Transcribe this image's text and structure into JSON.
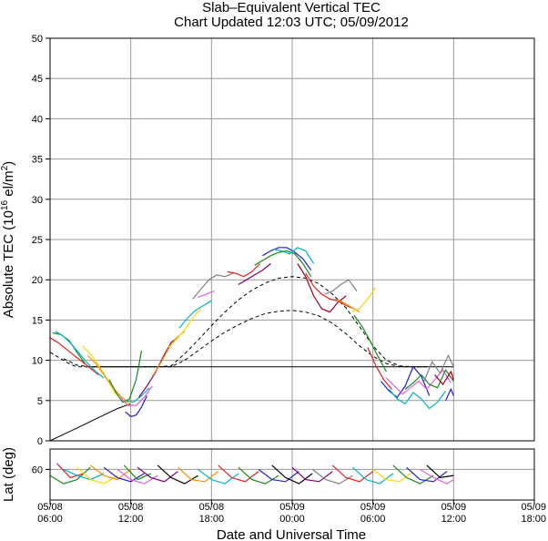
{
  "chart_data": {
    "type": "line",
    "title": "Slab–Equivalent Vertical TEC",
    "subtitle": "Chart Updated 12:03 UTC; 05/09/2012",
    "xlabel": "Date and Universal Time",
    "ylabel": "Absolute TEC (10¹⁶ el/m²)",
    "ylabel_parts": {
      "pre": "Absolute TEC (10",
      "sup1": "16",
      "mid": " el/m",
      "sup2": "2",
      "post": ")"
    },
    "lower_ylabel": "Lat (deg)",
    "x_unit": "hours since 05/08 06:00 UTC",
    "xlim": [
      0,
      36
    ],
    "ylim": [
      0,
      50
    ],
    "grid": true,
    "x_ticks": [
      {
        "x": 0,
        "line1": "05/08",
        "line2": "06:00"
      },
      {
        "x": 6,
        "line1": "05/08",
        "line2": "12:00"
      },
      {
        "x": 12,
        "line1": "05/08",
        "line2": "18:00"
      },
      {
        "x": 18,
        "line1": "05/09",
        "line2": "00:00"
      },
      {
        "x": 24,
        "line1": "05/09",
        "line2": "06:00"
      },
      {
        "x": 30,
        "line1": "05/09",
        "line2": "12:00"
      },
      {
        "x": 36,
        "line1": "05/09",
        "line2": "18:00"
      }
    ],
    "y_ticks": [
      0,
      5,
      10,
      15,
      20,
      25,
      30,
      35,
      40,
      45,
      50
    ],
    "lat_ticks": [
      60
    ],
    "lat_range": [
      45,
      70
    ],
    "colors": [
      "#e02020",
      "#1a8a1a",
      "#2020c8",
      "#7a007a",
      "#00b4c8",
      "#ff8c00",
      "#ffd700",
      "#808080",
      "#e060e0",
      "#9a0020",
      "#000000"
    ],
    "series": [
      {
        "style": "dashed",
        "x": [
          0,
          0.5,
          1,
          1.5,
          2,
          3,
          4,
          5,
          6,
          7,
          8,
          9,
          10,
          11,
          12,
          13,
          14,
          15,
          16,
          17,
          18,
          19,
          20,
          21,
          22,
          23,
          24,
          25,
          26,
          27,
          28
        ],
        "y": [
          11,
          10.5,
          10,
          9.5,
          9.2,
          9.2,
          9.2,
          9.2,
          9.2,
          9.2,
          9.2,
          9.2,
          10,
          11.2,
          12.4,
          13.5,
          14.4,
          15.2,
          15.8,
          16.1,
          16.2,
          16,
          15.5,
          14.6,
          13.3,
          11.8,
          10.5,
          9.6,
          9.2,
          9.2,
          9.2
        ]
      },
      {
        "style": "dashed",
        "x": [
          1,
          2,
          3,
          4,
          5,
          6,
          7,
          8,
          9,
          10,
          11,
          12,
          13,
          14,
          15,
          16,
          17,
          18,
          19,
          20,
          21,
          22,
          23,
          24,
          25,
          26,
          27,
          28
        ],
        "y": [
          10.2,
          9.4,
          9.2,
          9.2,
          9.2,
          9.2,
          9.2,
          9.2,
          9.3,
          10.8,
          12.5,
          14.3,
          16,
          17.5,
          18.7,
          19.6,
          20.2,
          20.4,
          20.2,
          19.5,
          18.2,
          16.5,
          14.2,
          11.8,
          10,
          9.3,
          9.2,
          9.2
        ]
      },
      {
        "style": "solid",
        "x": [
          3,
          4,
          5,
          6,
          7,
          8,
          9,
          10,
          11,
          12,
          13,
          14,
          15,
          16,
          17,
          18,
          19,
          20,
          21,
          22,
          23,
          24,
          25,
          26,
          27,
          28,
          29,
          30
        ],
        "y": [
          9.2,
          9.2,
          9.2,
          9.2,
          9.2,
          9.2,
          9.2,
          9.2,
          9.2,
          9.2,
          9.2,
          9.2,
          9.2,
          9.2,
          9.2,
          9.2,
          9.2,
          9.2,
          9.2,
          9.2,
          9.2,
          9.2,
          9.2,
          9.2,
          9.2,
          9.2,
          9.2,
          9.2
        ]
      },
      {
        "style": "solid",
        "x": [
          0,
          1,
          2,
          3,
          4,
          5,
          6
        ],
        "y": [
          0,
          0.8,
          1.6,
          2.4,
          3.2,
          4,
          4.6
        ]
      },
      {
        "name": "",
        "color": "#e02020",
        "x": [
          0,
          0.6,
          1.2,
          1.8,
          2.4,
          3.0,
          3.6
        ],
        "y": [
          12.8,
          12.2,
          11.4,
          10.6,
          9.8,
          9.0,
          8.2
        ]
      },
      {
        "color": "#1a8a1a",
        "x": [
          0.2,
          0.8,
          1.4,
          2.0,
          2.6
        ],
        "y": [
          13.4,
          13.2,
          12.5,
          11.0,
          9.6
        ]
      },
      {
        "color": "#00b4c8",
        "x": [
          0.4,
          1.0,
          1.6,
          2.2,
          2.8,
          3.4,
          4.0
        ],
        "y": [
          13.6,
          13.0,
          12.0,
          10.8,
          9.6,
          8.6,
          7.8
        ]
      },
      {
        "color": "#ffd700",
        "x": [
          2.4,
          3.0,
          3.6,
          4.2,
          4.8,
          5.4,
          6.0
        ],
        "y": [
          11.8,
          10.8,
          9.4,
          7.8,
          6.0,
          5.0,
          4.6
        ]
      },
      {
        "color": "#ff8c00",
        "x": [
          2.8,
          3.4,
          4.0,
          4.6,
          5.2,
          5.8
        ],
        "y": [
          10.6,
          9.6,
          8.2,
          6.8,
          5.6,
          4.8
        ]
      },
      {
        "color": "#1a8a1a",
        "x": [
          4.4,
          4.9,
          5.4,
          5.9,
          6.4,
          6.8
        ],
        "y": [
          7.6,
          6.0,
          4.8,
          5.2,
          7.6,
          11.2
        ]
      },
      {
        "color": "#2020c8",
        "x": [
          5.6,
          6.0,
          6.4,
          6.8,
          7.2
        ],
        "y": [
          3.6,
          3.0,
          3.2,
          4.2,
          5.6
        ]
      },
      {
        "color": "#e060e0",
        "x": [
          5.2,
          5.8,
          6.4,
          7.0,
          7.6
        ],
        "y": [
          5.4,
          4.4,
          4.4,
          5.4,
          6.8
        ]
      },
      {
        "color": "#00b4c8",
        "x": [
          5.6,
          6.2,
          6.8,
          7.4
        ],
        "y": [
          5.0,
          4.8,
          5.6,
          6.6
        ]
      },
      {
        "color": "#7a007a",
        "x": [
          6.6,
          7.2,
          7.8,
          8.4,
          9.0,
          9.6
        ],
        "y": [
          5.4,
          6.8,
          8.4,
          10.4,
          12.2,
          13.0
        ]
      },
      {
        "color": "#ff8c00",
        "x": [
          7.6,
          8.2,
          8.8,
          9.4,
          10.0
        ],
        "y": [
          8.0,
          9.6,
          11.4,
          12.8,
          13.6
        ]
      },
      {
        "color": "#ffd700",
        "x": [
          8.8,
          9.4,
          10.0,
          10.6,
          11.2
        ],
        "y": [
          11.6,
          12.6,
          13.8,
          15.2,
          16.4
        ]
      },
      {
        "color": "#00b4c8",
        "x": [
          9.6,
          10.2,
          10.8,
          11.4,
          12.0
        ],
        "y": [
          14.0,
          15.2,
          16.2,
          16.8,
          17.4
        ]
      },
      {
        "color": "#808080",
        "x": [
          10.6,
          11.2,
          11.8,
          12.4,
          13.0,
          13.6
        ],
        "y": [
          17.6,
          18.8,
          20.0,
          20.6,
          20.4,
          20.8
        ]
      },
      {
        "color": "#e060e0",
        "x": [
          11.0,
          11.6,
          12.2
        ],
        "y": [
          17.8,
          18.2,
          18.6
        ]
      },
      {
        "color": "#e02020",
        "x": [
          13.2,
          13.8,
          14.4,
          15.0,
          15.6
        ],
        "y": [
          21.0,
          20.8,
          20.4,
          21.0,
          22.0
        ]
      },
      {
        "color": "#7a007a",
        "x": [
          14.0,
          14.6,
          15.2,
          15.8,
          16.4
        ],
        "y": [
          19.4,
          20.0,
          20.6,
          21.2,
          22.0
        ]
      },
      {
        "color": "#1a8a1a",
        "x": [
          15.2,
          15.8,
          16.4,
          17.0,
          17.6,
          18.2,
          18.8,
          19.4
        ],
        "y": [
          21.8,
          22.4,
          23.0,
          23.4,
          23.6,
          23.2,
          22.0,
          20.4
        ]
      },
      {
        "color": "#2020c8",
        "x": [
          15.8,
          16.4,
          17.0,
          17.6,
          18.2,
          18.8,
          19.4
        ],
        "y": [
          23.0,
          23.6,
          24.0,
          24.0,
          23.4,
          22.6,
          21.2
        ]
      },
      {
        "color": "#00b4c8",
        "x": [
          16.6,
          17.2,
          17.8,
          18.4,
          19.0,
          19.6
        ],
        "y": [
          23.8,
          23.6,
          23.2,
          24.0,
          23.6,
          22.0
        ]
      },
      {
        "color": "#9a0020",
        "x": [
          18.4,
          19.0,
          19.6,
          20.2,
          20.8,
          21.4,
          22.0
        ],
        "y": [
          22.0,
          20.4,
          18.0,
          16.4,
          16.0,
          17.2,
          18.0
        ]
      },
      {
        "color": "#e02020",
        "x": [
          19.0,
          19.6,
          20.2,
          20.8,
          21.4,
          22.0,
          22.6
        ],
        "y": [
          20.8,
          19.2,
          18.2,
          17.6,
          17.4,
          16.8,
          16.4
        ]
      },
      {
        "color": "#808080",
        "x": [
          20.4,
          21.0,
          21.6,
          22.2,
          22.8
        ],
        "y": [
          18.2,
          18.6,
          19.4,
          20.0,
          18.6
        ]
      },
      {
        "color": "#ff8c00",
        "x": [
          21.2,
          21.8,
          22.4,
          23.0
        ],
        "y": [
          17.6,
          17.2,
          16.6,
          16.0
        ]
      },
      {
        "color": "#ffd700",
        "x": [
          22.4,
          23.0,
          23.6,
          24.2
        ],
        "y": [
          16.0,
          16.4,
          17.6,
          19.0
        ]
      },
      {
        "color": "#1a8a1a",
        "x": [
          22.6,
          23.2,
          23.8,
          24.4,
          25.0
        ],
        "y": [
          15.6,
          14.2,
          12.4,
          10.4,
          8.6
        ]
      },
      {
        "color": "#e02020",
        "x": [
          23.6,
          24.2,
          24.8,
          25.4
        ],
        "y": [
          11.6,
          9.4,
          7.6,
          6.4
        ]
      },
      {
        "color": "#2020c8",
        "x": [
          24.6,
          25.2,
          25.8,
          26.4,
          27.0,
          27.6,
          28.2
        ],
        "y": [
          7.4,
          6.2,
          5.4,
          6.8,
          9.2,
          8.0,
          5.6
        ]
      },
      {
        "color": "#00b4c8",
        "x": [
          25.2,
          25.8,
          26.4,
          27.0,
          27.6,
          28.2,
          28.8,
          29.4
        ],
        "y": [
          6.4,
          5.2,
          4.6,
          6.0,
          5.2,
          4.0,
          4.8,
          6.2
        ]
      },
      {
        "color": "#e060e0",
        "x": [
          25.0,
          25.6,
          26.2,
          26.8,
          27.4,
          28.0,
          28.6,
          29.2,
          29.8
        ],
        "y": [
          7.8,
          6.8,
          5.8,
          6.6,
          7.4,
          6.4,
          7.6,
          8.8,
          7.2
        ]
      },
      {
        "color": "#1a8a1a",
        "x": [
          26.4,
          27.0,
          27.6,
          28.2,
          28.8,
          29.4,
          30.0
        ],
        "y": [
          6.4,
          7.2,
          8.2,
          7.0,
          6.6,
          8.8,
          7.4
        ]
      },
      {
        "color": "#808080",
        "x": [
          27.8,
          28.4,
          29.0,
          29.6,
          30.0
        ],
        "y": [
          7.4,
          9.8,
          8.4,
          10.6,
          9.2
        ]
      },
      {
        "color": "#9a0020",
        "x": [
          28.6,
          29.2,
          29.8,
          30.0
        ],
        "y": [
          8.2,
          7.0,
          8.6,
          7.6
        ]
      },
      {
        "color": "#2020c8",
        "x": [
          29.4,
          29.8,
          30.0
        ],
        "y": [
          5.0,
          6.4,
          5.6
        ]
      }
    ],
    "lat_tracks": [
      {
        "color": "#1a8a1a",
        "x": [
          0,
          1,
          2,
          3
        ],
        "lat": [
          57,
          53,
          55,
          61
        ]
      },
      {
        "color": "#e02020",
        "x": [
          0.5,
          1.5,
          2.5
        ],
        "lat": [
          63,
          56,
          58
        ]
      },
      {
        "color": "#00b4c8",
        "x": [
          1,
          2,
          3,
          4
        ],
        "lat": [
          60,
          57,
          55,
          58
        ]
      },
      {
        "color": "#ffd700",
        "x": [
          2,
          3,
          4,
          5
        ],
        "lat": [
          61,
          55,
          53,
          57
        ]
      },
      {
        "color": "#ff8c00",
        "x": [
          3,
          4,
          5,
          6
        ],
        "lat": [
          62,
          57,
          55,
          60
        ]
      },
      {
        "color": "#2020c8",
        "x": [
          4,
          5,
          6,
          7
        ],
        "lat": [
          61,
          56,
          54,
          58
        ]
      },
      {
        "color": "#e060e0",
        "x": [
          5,
          6,
          7,
          8
        ],
        "lat": [
          60,
          55,
          53,
          57
        ]
      },
      {
        "color": "#1a8a1a",
        "x": [
          5.5,
          6.5,
          7.5
        ],
        "lat": [
          62,
          55,
          58
        ]
      },
      {
        "color": "#7a007a",
        "x": [
          6.5,
          7.5,
          8.5,
          9.5
        ],
        "lat": [
          61,
          56,
          54,
          59
        ]
      },
      {
        "color": "#000000",
        "x": [
          8,
          9,
          10,
          11
        ],
        "lat": [
          62,
          56,
          53,
          57
        ]
      },
      {
        "color": "#ff8c00",
        "x": [
          9.5,
          10.5,
          11.5,
          12.5
        ],
        "lat": [
          61,
          55,
          54,
          59
        ]
      },
      {
        "color": "#00b4c8",
        "x": [
          11,
          12,
          13,
          14
        ],
        "lat": [
          60,
          55,
          53,
          58
        ]
      },
      {
        "color": "#e02020",
        "x": [
          12.5,
          13.5,
          14.5,
          15.5
        ],
        "lat": [
          62,
          56,
          54,
          59
        ]
      },
      {
        "color": "#1a8a1a",
        "x": [
          14,
          15,
          16,
          17
        ],
        "lat": [
          61,
          55,
          53,
          57
        ]
      },
      {
        "color": "#2020c8",
        "x": [
          15.5,
          16.5,
          17.5,
          18.5
        ],
        "lat": [
          60,
          55,
          54,
          59
        ]
      },
      {
        "color": "#000000",
        "x": [
          16.5,
          17.5,
          18.5,
          19.5
        ],
        "lat": [
          62,
          56,
          53,
          58
        ]
      },
      {
        "color": "#7a007a",
        "x": [
          18,
          19,
          20,
          21
        ],
        "lat": [
          61,
          55,
          54,
          59
        ]
      },
      {
        "color": "#808080",
        "x": [
          19.5,
          20.5,
          21.5,
          22.5
        ],
        "lat": [
          60,
          55,
          53,
          57
        ]
      },
      {
        "color": "#e02020",
        "x": [
          21,
          22,
          23,
          24
        ],
        "lat": [
          62,
          56,
          54,
          59
        ]
      },
      {
        "color": "#00b4c8",
        "x": [
          22.5,
          23.5,
          24.5,
          25.5
        ],
        "lat": [
          61,
          55,
          53,
          58
        ]
      },
      {
        "color": "#ffd700",
        "x": [
          24,
          25,
          26,
          27
        ],
        "lat": [
          60,
          55,
          54,
          59
        ]
      },
      {
        "color": "#1a8a1a",
        "x": [
          25.5,
          26.5,
          27.5,
          28.5
        ],
        "lat": [
          62,
          56,
          53,
          57
        ]
      },
      {
        "color": "#2020c8",
        "x": [
          26.5,
          27.5,
          28.5,
          29.5
        ],
        "lat": [
          61,
          55,
          54,
          59
        ]
      },
      {
        "color": "#e060e0",
        "x": [
          27.5,
          28.5,
          29.5,
          30
        ],
        "lat": [
          60,
          56,
          53,
          55
        ]
      },
      {
        "color": "#000000",
        "x": [
          28,
          29,
          30
        ],
        "lat": [
          62,
          56,
          57
        ]
      }
    ]
  }
}
